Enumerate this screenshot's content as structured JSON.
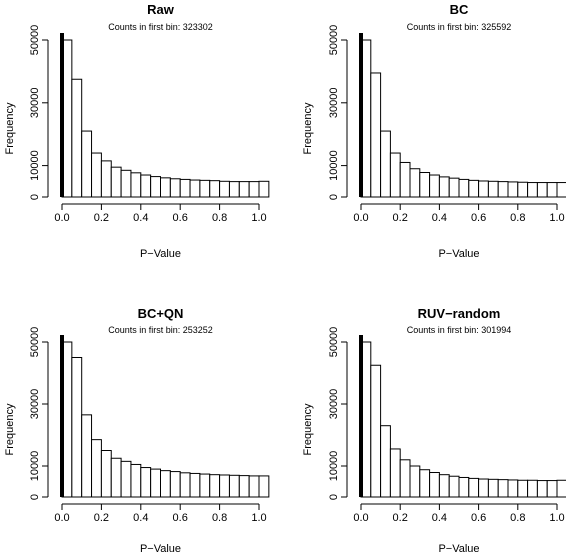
{
  "chart_data": [
    {
      "type": "bar",
      "title": "Raw",
      "subtitle": "Counts in first bin: 323302",
      "xlabel": "P−Value",
      "ylabel": "Frequency",
      "xlim": [
        0,
        1
      ],
      "ylim": [
        0,
        50000
      ],
      "x_ticks": [
        0.0,
        0.2,
        0.4,
        0.6,
        0.8,
        1.0
      ],
      "x_tick_labels": [
        "0.0",
        "0.2",
        "0.4",
        "0.6",
        "0.8",
        "1.0"
      ],
      "y_ticks": [
        0,
        10000,
        30000,
        50000
      ],
      "y_tick_labels": [
        "0",
        "10000",
        "30000",
        "50000"
      ],
      "bin_width": 0.05,
      "values": [
        50000,
        37500,
        21000,
        14000,
        11500,
        9500,
        8500,
        7700,
        7000,
        6500,
        6100,
        5800,
        5600,
        5400,
        5300,
        5200,
        5000,
        4900,
        4900,
        4900,
        5000
      ]
    },
    {
      "type": "bar",
      "title": "BC",
      "subtitle": "Counts in first bin: 325592",
      "xlabel": "P−Value",
      "ylabel": "Frequency",
      "xlim": [
        0,
        1
      ],
      "ylim": [
        0,
        50000
      ],
      "x_ticks": [
        0.0,
        0.2,
        0.4,
        0.6,
        0.8,
        1.0
      ],
      "x_tick_labels": [
        "0.0",
        "0.2",
        "0.4",
        "0.6",
        "0.8",
        "1.0"
      ],
      "y_ticks": [
        0,
        10000,
        30000,
        50000
      ],
      "y_tick_labels": [
        "0",
        "10000",
        "30000",
        "50000"
      ],
      "bin_width": 0.05,
      "values": [
        50000,
        39500,
        21000,
        14000,
        11000,
        9000,
        7800,
        7000,
        6400,
        6000,
        5600,
        5300,
        5100,
        5000,
        4900,
        4800,
        4700,
        4600,
        4600,
        4600,
        4600
      ]
    },
    {
      "type": "bar",
      "title": "BC+QN",
      "subtitle": "Counts in first bin: 253252",
      "xlabel": "P−Value",
      "ylabel": "Frequency",
      "xlim": [
        0,
        1
      ],
      "ylim": [
        0,
        50000
      ],
      "x_ticks": [
        0.0,
        0.2,
        0.4,
        0.6,
        0.8,
        1.0
      ],
      "x_tick_labels": [
        "0.0",
        "0.2",
        "0.4",
        "0.6",
        "0.8",
        "1.0"
      ],
      "y_ticks": [
        0,
        10000,
        30000,
        50000
      ],
      "y_tick_labels": [
        "0",
        "10000",
        "30000",
        "50000"
      ],
      "bin_width": 0.05,
      "values": [
        50000,
        45000,
        26500,
        18500,
        15000,
        12500,
        11500,
        10500,
        9500,
        9000,
        8500,
        8200,
        7800,
        7600,
        7400,
        7200,
        7100,
        7000,
        6900,
        6800,
        6800
      ]
    },
    {
      "type": "bar",
      "title": "RUV−random",
      "subtitle": "Counts in first bin: 301994",
      "xlabel": "P−Value",
      "ylabel": "Frequency",
      "xlim": [
        0,
        1
      ],
      "ylim": [
        0,
        50000
      ],
      "x_ticks": [
        0.0,
        0.2,
        0.4,
        0.6,
        0.8,
        1.0
      ],
      "x_tick_labels": [
        "0.0",
        "0.2",
        "0.4",
        "0.6",
        "0.8",
        "1.0"
      ],
      "y_ticks": [
        0,
        10000,
        30000,
        50000
      ],
      "y_tick_labels": [
        "0",
        "10000",
        "30000",
        "50000"
      ],
      "bin_width": 0.05,
      "values": [
        50000,
        42500,
        23000,
        15500,
        12000,
        10000,
        8800,
        7900,
        7200,
        6700,
        6300,
        6000,
        5800,
        5700,
        5600,
        5500,
        5400,
        5400,
        5300,
        5300,
        5400
      ]
    }
  ]
}
